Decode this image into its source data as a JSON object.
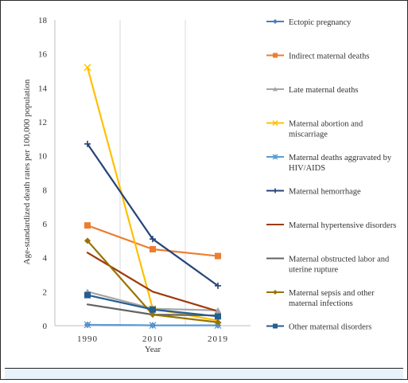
{
  "chart_data": {
    "type": "line",
    "x": [
      "1990",
      "2010",
      "2019"
    ],
    "xlabel": "Year",
    "ylabel": "Age-standardized death rates per 100,000 population",
    "ylim": [
      0,
      18
    ],
    "yticks": [
      "0",
      "2",
      "4",
      "6",
      "8",
      "10",
      "12",
      "14",
      "16",
      "18"
    ],
    "grid": "vertical",
    "legend_position": "right",
    "series": [
      {
        "name": "Ectopic pregnancy",
        "values": [
          0.05,
          0.02,
          0.02
        ],
        "color": "#4a7ebb",
        "marker": "diamond"
      },
      {
        "name": "Indirect maternal deaths",
        "values": [
          5.9,
          4.5,
          4.1
        ],
        "color": "#ed7d31",
        "marker": "square"
      },
      {
        "name": "Late maternal deaths",
        "values": [
          2.0,
          1.0,
          0.9
        ],
        "color": "#a5a5a5",
        "marker": "triangle"
      },
      {
        "name": "Maternal abortion and miscarriage",
        "values": [
          15.2,
          1.0,
          0.3
        ],
        "color": "#ffc000",
        "marker": "x"
      },
      {
        "name": "Maternal deaths aggravated by HIV/AIDS",
        "values": [
          0.05,
          0.02,
          0.02
        ],
        "color": "#5b9bd5",
        "marker": "star"
      },
      {
        "name": "Maternal hemorrhage",
        "values": [
          10.7,
          5.1,
          2.35
        ],
        "color": "#264478",
        "marker": "plus"
      },
      {
        "name": "Maternal hypertensive disorders",
        "values": [
          4.3,
          2.0,
          0.85
        ],
        "color": "#9e3a0b",
        "marker": "none"
      },
      {
        "name": "Maternal obstructed labor and uterine rupture",
        "values": [
          1.25,
          0.65,
          0.6
        ],
        "color": "#636363",
        "marker": "none"
      },
      {
        "name": "Maternal sepsis and other maternal infections",
        "values": [
          5.0,
          0.65,
          0.2
        ],
        "color": "#997300",
        "marker": "diamond"
      },
      {
        "name": "Other maternal disorders",
        "values": [
          1.8,
          0.95,
          0.55
        ],
        "color": "#255e91",
        "marker": "square"
      }
    ]
  }
}
